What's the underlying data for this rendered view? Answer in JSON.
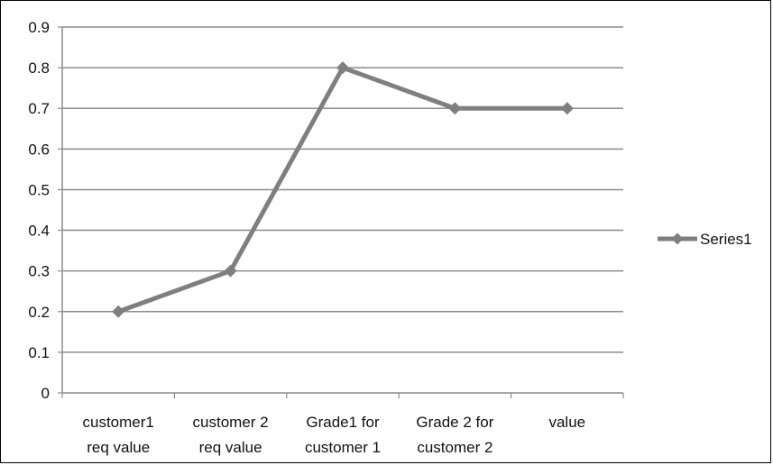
{
  "chart_data": {
    "type": "line",
    "categories": [
      [
        "customer1",
        "req value"
      ],
      [
        "customer 2",
        "req value"
      ],
      [
        "Grade1 for",
        "customer 1"
      ],
      [
        "Grade 2 for",
        "customer 2"
      ],
      [
        "value"
      ]
    ],
    "series": [
      {
        "name": "Series1",
        "values": [
          0.2,
          0.3,
          0.8,
          0.7,
          0.7
        ],
        "color": "#7f7f7f"
      }
    ],
    "ylim": [
      0,
      0.9
    ],
    "yticks": [
      "0",
      "0.1",
      "0.2",
      "0.3",
      "0.4",
      "0.5",
      "0.6",
      "0.7",
      "0.8",
      "0.9"
    ],
    "grid": true,
    "legend": "right",
    "title": "",
    "xlabel": "",
    "ylabel": "",
    "gridline_color": "#8c8c8c",
    "axis_color": "#8c8c8c"
  }
}
